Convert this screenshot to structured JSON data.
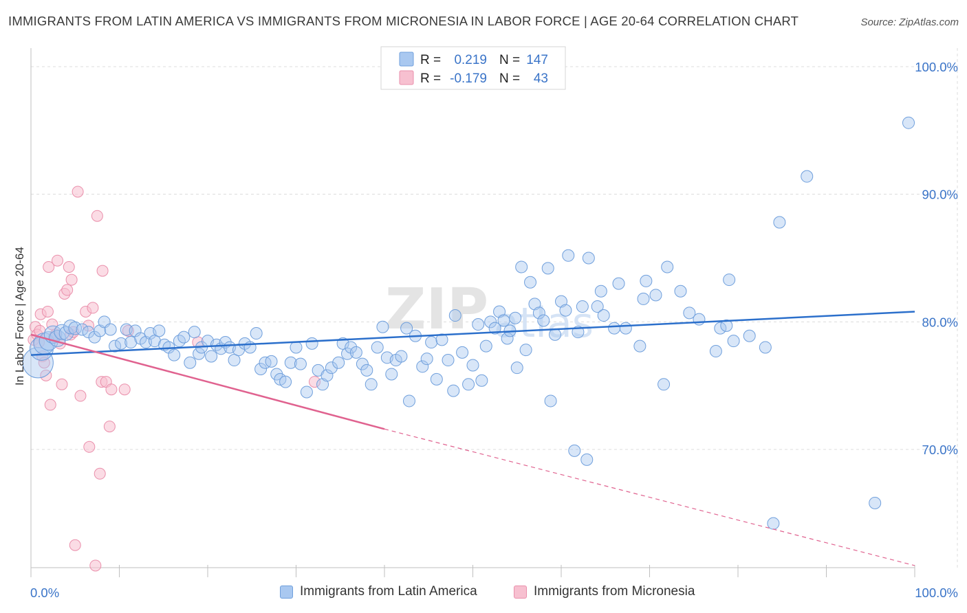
{
  "header": {
    "title": "IMMIGRANTS FROM LATIN AMERICA VS IMMIGRANTS FROM MICRONESIA IN LABOR FORCE | AGE 20-64 CORRELATION CHART",
    "source": "Source: ZipAtlas.com"
  },
  "watermark": {
    "text_bold": "ZIP",
    "text_light": "atlas"
  },
  "stats": [
    {
      "r_label": "R =",
      "r_value": "0.219",
      "n_label": "N =",
      "n_value": "147"
    },
    {
      "r_label": "R =",
      "r_value": "-0.179",
      "n_label": "N =",
      "n_value": "43"
    }
  ],
  "colors": {
    "blue_fill": "#a9c8f0",
    "blue_stroke": "#6f9fdc",
    "blue_line": "#2b6fcb",
    "pink_fill": "#f7c0d0",
    "pink_stroke": "#ea8fab",
    "pink_line": "#e0628f",
    "value_text": "#3a74c8",
    "grid": "#dcdcdc"
  },
  "chart_data": {
    "type": "scatter",
    "title": "IMMIGRANTS FROM LATIN AMERICA VS IMMIGRANTS FROM MICRONESIA IN LABOR FORCE | AGE 20-64 CORRELATION CHART",
    "xlabel": "",
    "ylabel": "In Labor Force | Age 20-64",
    "xlim": [
      0,
      100
    ],
    "ylim": [
      60,
      103
    ],
    "x_tick_labels": [
      "0.0%",
      "100.0%"
    ],
    "y_ticks": [
      70,
      80,
      90,
      100
    ],
    "y_tick_labels": [
      "70.0%",
      "80.0%",
      "90.0%",
      "100.0%"
    ],
    "grid": true,
    "legend_position": "bottom-center",
    "series": [
      {
        "name": "Immigrants from Latin America",
        "color": "#a9c8f0",
        "trend": {
          "x": [
            0,
            100
          ],
          "y": [
            77.4,
            80.8
          ],
          "style": "solid"
        },
        "points": [
          {
            "x": 0.8,
            "y": 76.8,
            "s": 2.6
          },
          {
            "x": 1.2,
            "y": 77.9,
            "s": 2.0
          },
          {
            "x": 1.5,
            "y": 78.3,
            "s": 1.8
          },
          {
            "x": 2.0,
            "y": 78.5,
            "s": 1.6
          },
          {
            "x": 2.5,
            "y": 79.0,
            "s": 1.5
          },
          {
            "x": 3.0,
            "y": 78.7,
            "s": 1.4
          },
          {
            "x": 3.5,
            "y": 79.2,
            "s": 1.3
          },
          {
            "x": 4.0,
            "y": 79.1,
            "s": 1.2
          },
          {
            "x": 4.5,
            "y": 79.6,
            "s": 1.2
          },
          {
            "x": 5.0,
            "y": 79.5,
            "s": 1.1
          },
          {
            "x": 5.8,
            "y": 79.4,
            "s": 1.0
          },
          {
            "x": 6.5,
            "y": 79.2,
            "s": 1.0
          },
          {
            "x": 7.2,
            "y": 78.8,
            "s": 1.0
          },
          {
            "x": 7.8,
            "y": 79.3,
            "s": 1.0
          },
          {
            "x": 8.3,
            "y": 80.0,
            "s": 1.0
          },
          {
            "x": 9.0,
            "y": 79.4,
            "s": 1.0
          },
          {
            "x": 9.5,
            "y": 78.1,
            "s": 1.0
          },
          {
            "x": 10.2,
            "y": 78.3,
            "s": 1.0
          },
          {
            "x": 10.8,
            "y": 79.4,
            "s": 1.0
          },
          {
            "x": 11.3,
            "y": 78.4,
            "s": 1.0
          },
          {
            "x": 11.8,
            "y": 79.3,
            "s": 1.0
          },
          {
            "x": 12.4,
            "y": 78.7,
            "s": 1.0
          },
          {
            "x": 13.0,
            "y": 78.4,
            "s": 1.0
          },
          {
            "x": 13.5,
            "y": 79.1,
            "s": 1.0
          },
          {
            "x": 14.0,
            "y": 78.5,
            "s": 1.0
          },
          {
            "x": 14.5,
            "y": 79.3,
            "s": 1.0
          },
          {
            "x": 15.1,
            "y": 78.2,
            "s": 1.0
          },
          {
            "x": 15.6,
            "y": 78.0,
            "s": 1.0
          },
          {
            "x": 16.2,
            "y": 77.4,
            "s": 1.0
          },
          {
            "x": 16.8,
            "y": 78.5,
            "s": 1.0
          },
          {
            "x": 17.3,
            "y": 78.8,
            "s": 1.0
          },
          {
            "x": 18.0,
            "y": 76.8,
            "s": 1.0
          },
          {
            "x": 18.5,
            "y": 79.2,
            "s": 1.0
          },
          {
            "x": 19.0,
            "y": 77.5,
            "s": 1.0
          },
          {
            "x": 19.3,
            "y": 78.0,
            "s": 1.0
          },
          {
            "x": 20.0,
            "y": 78.5,
            "s": 1.0
          },
          {
            "x": 20.4,
            "y": 77.3,
            "s": 1.0
          },
          {
            "x": 21.0,
            "y": 78.2,
            "s": 1.0
          },
          {
            "x": 21.5,
            "y": 77.9,
            "s": 1.0
          },
          {
            "x": 22.0,
            "y": 78.4,
            "s": 1.0
          },
          {
            "x": 22.5,
            "y": 78.0,
            "s": 1.0
          },
          {
            "x": 23.0,
            "y": 77.0,
            "s": 1.0
          },
          {
            "x": 23.5,
            "y": 77.8,
            "s": 1.0
          },
          {
            "x": 24.2,
            "y": 78.3,
            "s": 1.0
          },
          {
            "x": 24.8,
            "y": 78.0,
            "s": 1.0
          },
          {
            "x": 25.5,
            "y": 79.1,
            "s": 1.0
          },
          {
            "x": 26.0,
            "y": 76.3,
            "s": 1.0
          },
          {
            "x": 26.5,
            "y": 76.8,
            "s": 1.0
          },
          {
            "x": 27.2,
            "y": 76.9,
            "s": 1.0
          },
          {
            "x": 27.8,
            "y": 75.9,
            "s": 1.0
          },
          {
            "x": 28.2,
            "y": 75.5,
            "s": 1.0
          },
          {
            "x": 28.8,
            "y": 75.3,
            "s": 1.0
          },
          {
            "x": 29.4,
            "y": 76.8,
            "s": 1.0
          },
          {
            "x": 30.0,
            "y": 78.0,
            "s": 1.0
          },
          {
            "x": 30.5,
            "y": 76.7,
            "s": 1.0
          },
          {
            "x": 31.2,
            "y": 74.5,
            "s": 1.0
          },
          {
            "x": 31.8,
            "y": 78.3,
            "s": 1.0
          },
          {
            "x": 32.5,
            "y": 76.2,
            "s": 1.0
          },
          {
            "x": 33.0,
            "y": 75.1,
            "s": 1.0
          },
          {
            "x": 33.5,
            "y": 75.8,
            "s": 1.0
          },
          {
            "x": 34.0,
            "y": 76.4,
            "s": 1.0
          },
          {
            "x": 34.8,
            "y": 76.8,
            "s": 1.0
          },
          {
            "x": 35.3,
            "y": 78.3,
            "s": 1.0
          },
          {
            "x": 35.8,
            "y": 77.5,
            "s": 1.0
          },
          {
            "x": 36.2,
            "y": 78.0,
            "s": 1.0
          },
          {
            "x": 36.8,
            "y": 77.6,
            "s": 1.0
          },
          {
            "x": 37.5,
            "y": 76.7,
            "s": 1.0
          },
          {
            "x": 38.0,
            "y": 76.2,
            "s": 1.0
          },
          {
            "x": 38.5,
            "y": 75.1,
            "s": 1.0
          },
          {
            "x": 39.2,
            "y": 78.0,
            "s": 1.0
          },
          {
            "x": 39.8,
            "y": 79.6,
            "s": 1.0
          },
          {
            "x": 40.3,
            "y": 77.2,
            "s": 1.0
          },
          {
            "x": 40.8,
            "y": 75.9,
            "s": 1.0
          },
          {
            "x": 41.3,
            "y": 77.0,
            "s": 1.0
          },
          {
            "x": 41.9,
            "y": 77.3,
            "s": 1.0
          },
          {
            "x": 42.5,
            "y": 79.5,
            "s": 1.0
          },
          {
            "x": 42.8,
            "y": 73.8,
            "s": 1.0
          },
          {
            "x": 43.5,
            "y": 78.9,
            "s": 1.0
          },
          {
            "x": 44.3,
            "y": 76.5,
            "s": 1.0
          },
          {
            "x": 44.8,
            "y": 77.1,
            "s": 1.0
          },
          {
            "x": 45.3,
            "y": 78.4,
            "s": 1.0
          },
          {
            "x": 45.9,
            "y": 75.5,
            "s": 1.0
          },
          {
            "x": 46.5,
            "y": 78.6,
            "s": 1.0
          },
          {
            "x": 47.2,
            "y": 77.0,
            "s": 1.0
          },
          {
            "x": 47.8,
            "y": 74.6,
            "s": 1.0
          },
          {
            "x": 48.0,
            "y": 80.5,
            "s": 1.0
          },
          {
            "x": 48.8,
            "y": 77.6,
            "s": 1.0
          },
          {
            "x": 49.5,
            "y": 75.1,
            "s": 1.0
          },
          {
            "x": 50.0,
            "y": 76.6,
            "s": 1.0
          },
          {
            "x": 50.6,
            "y": 79.8,
            "s": 1.0
          },
          {
            "x": 51.0,
            "y": 75.4,
            "s": 1.0
          },
          {
            "x": 51.5,
            "y": 78.1,
            "s": 1.0
          },
          {
            "x": 52.0,
            "y": 80.0,
            "s": 1.0
          },
          {
            "x": 52.5,
            "y": 79.5,
            "s": 1.0
          },
          {
            "x": 53.0,
            "y": 80.8,
            "s": 1.0
          },
          {
            "x": 53.5,
            "y": 80.1,
            "s": 1.0
          },
          {
            "x": 53.9,
            "y": 78.7,
            "s": 1.0
          },
          {
            "x": 54.2,
            "y": 79.3,
            "s": 1.0
          },
          {
            "x": 54.8,
            "y": 80.3,
            "s": 1.0
          },
          {
            "x": 55.0,
            "y": 76.4,
            "s": 1.0
          },
          {
            "x": 55.5,
            "y": 84.3,
            "s": 1.0
          },
          {
            "x": 56.0,
            "y": 77.8,
            "s": 1.0
          },
          {
            "x": 56.5,
            "y": 83.1,
            "s": 1.0
          },
          {
            "x": 57.0,
            "y": 81.4,
            "s": 1.0
          },
          {
            "x": 57.5,
            "y": 80.7,
            "s": 1.0
          },
          {
            "x": 58.0,
            "y": 80.1,
            "s": 1.0
          },
          {
            "x": 58.5,
            "y": 84.2,
            "s": 1.0
          },
          {
            "x": 58.8,
            "y": 73.8,
            "s": 1.0
          },
          {
            "x": 59.3,
            "y": 79.0,
            "s": 1.0
          },
          {
            "x": 60.0,
            "y": 81.6,
            "s": 1.0
          },
          {
            "x": 60.5,
            "y": 80.9,
            "s": 1.0
          },
          {
            "x": 60.8,
            "y": 85.2,
            "s": 1.0
          },
          {
            "x": 61.5,
            "y": 69.9,
            "s": 1.0
          },
          {
            "x": 61.9,
            "y": 79.2,
            "s": 1.0
          },
          {
            "x": 62.4,
            "y": 81.2,
            "s": 1.0
          },
          {
            "x": 62.9,
            "y": 69.2,
            "s": 1.0
          },
          {
            "x": 63.1,
            "y": 85.0,
            "s": 1.0
          },
          {
            "x": 64.1,
            "y": 81.2,
            "s": 1.0
          },
          {
            "x": 64.5,
            "y": 82.4,
            "s": 1.0
          },
          {
            "x": 64.8,
            "y": 80.5,
            "s": 1.0
          },
          {
            "x": 66.0,
            "y": 79.5,
            "s": 1.0
          },
          {
            "x": 66.5,
            "y": 83.0,
            "s": 1.0
          },
          {
            "x": 67.3,
            "y": 79.5,
            "s": 1.0
          },
          {
            "x": 68.9,
            "y": 78.1,
            "s": 1.0
          },
          {
            "x": 69.3,
            "y": 81.8,
            "s": 1.0
          },
          {
            "x": 69.6,
            "y": 83.2,
            "s": 1.0
          },
          {
            "x": 70.7,
            "y": 82.1,
            "s": 1.0
          },
          {
            "x": 71.6,
            "y": 75.1,
            "s": 1.0
          },
          {
            "x": 72.0,
            "y": 84.3,
            "s": 1.0
          },
          {
            "x": 73.5,
            "y": 82.4,
            "s": 1.0
          },
          {
            "x": 74.5,
            "y": 80.7,
            "s": 1.0
          },
          {
            "x": 75.6,
            "y": 80.2,
            "s": 1.0
          },
          {
            "x": 77.5,
            "y": 77.7,
            "s": 1.0
          },
          {
            "x": 78.0,
            "y": 79.5,
            "s": 1.0
          },
          {
            "x": 78.7,
            "y": 79.7,
            "s": 1.0
          },
          {
            "x": 79.0,
            "y": 83.3,
            "s": 1.0
          },
          {
            "x": 79.5,
            "y": 78.5,
            "s": 1.0
          },
          {
            "x": 81.3,
            "y": 78.9,
            "s": 1.0
          },
          {
            "x": 83.1,
            "y": 78.0,
            "s": 1.0
          },
          {
            "x": 84.0,
            "y": 64.2,
            "s": 1.0
          },
          {
            "x": 84.7,
            "y": 87.8,
            "s": 1.0
          },
          {
            "x": 87.8,
            "y": 91.4,
            "s": 1.0
          },
          {
            "x": 95.5,
            "y": 65.8,
            "s": 1.0
          },
          {
            "x": 99.3,
            "y": 95.6,
            "s": 1.0
          }
        ]
      },
      {
        "name": "Immigrants from Micronesia",
        "color": "#f7c0d0",
        "trend": {
          "x": [
            0,
            40
          ],
          "y": [
            79.0,
            71.6
          ],
          "style": "solid",
          "extended": {
            "x": [
              40,
              100
            ],
            "y": [
              71.6,
              60.9
            ],
            "style": "dashed"
          }
        },
        "points": [
          {
            "x": 0.3,
            "y": 78.6
          },
          {
            "x": 0.5,
            "y": 79.6
          },
          {
            "x": 0.7,
            "y": 79.0
          },
          {
            "x": 0.9,
            "y": 78.4
          },
          {
            "x": 1.0,
            "y": 79.3
          },
          {
            "x": 1.1,
            "y": 80.6
          },
          {
            "x": 1.3,
            "y": 77.3
          },
          {
            "x": 1.5,
            "y": 76.8
          },
          {
            "x": 1.7,
            "y": 75.8
          },
          {
            "x": 1.9,
            "y": 80.8
          },
          {
            "x": 2.0,
            "y": 84.3
          },
          {
            "x": 2.2,
            "y": 73.5
          },
          {
            "x": 2.4,
            "y": 79.8
          },
          {
            "x": 2.6,
            "y": 78.8
          },
          {
            "x": 2.8,
            "y": 79.0
          },
          {
            "x": 3.0,
            "y": 84.8
          },
          {
            "x": 3.3,
            "y": 78.3
          },
          {
            "x": 3.5,
            "y": 75.1
          },
          {
            "x": 3.8,
            "y": 82.2
          },
          {
            "x": 4.1,
            "y": 82.5
          },
          {
            "x": 4.3,
            "y": 84.3
          },
          {
            "x": 4.5,
            "y": 79.0
          },
          {
            "x": 4.6,
            "y": 83.3
          },
          {
            "x": 4.8,
            "y": 79.2
          },
          {
            "x": 5.0,
            "y": 62.5
          },
          {
            "x": 5.3,
            "y": 90.2
          },
          {
            "x": 5.6,
            "y": 74.2
          },
          {
            "x": 6.2,
            "y": 80.8
          },
          {
            "x": 6.5,
            "y": 79.7
          },
          {
            "x": 6.6,
            "y": 70.2
          },
          {
            "x": 7.0,
            "y": 81.1
          },
          {
            "x": 7.3,
            "y": 60.9
          },
          {
            "x": 7.5,
            "y": 88.3
          },
          {
            "x": 7.8,
            "y": 68.1
          },
          {
            "x": 8.0,
            "y": 75.3
          },
          {
            "x": 8.1,
            "y": 84.0
          },
          {
            "x": 8.5,
            "y": 75.3
          },
          {
            "x": 8.9,
            "y": 71.8
          },
          {
            "x": 9.1,
            "y": 74.7
          },
          {
            "x": 10.6,
            "y": 74.7
          },
          {
            "x": 11.0,
            "y": 79.3
          },
          {
            "x": 18.9,
            "y": 78.4
          },
          {
            "x": 32.1,
            "y": 75.3
          }
        ]
      }
    ]
  },
  "legend": {
    "items": [
      {
        "label": "Immigrants from Latin America"
      },
      {
        "label": "Immigrants from Micronesia"
      }
    ]
  }
}
